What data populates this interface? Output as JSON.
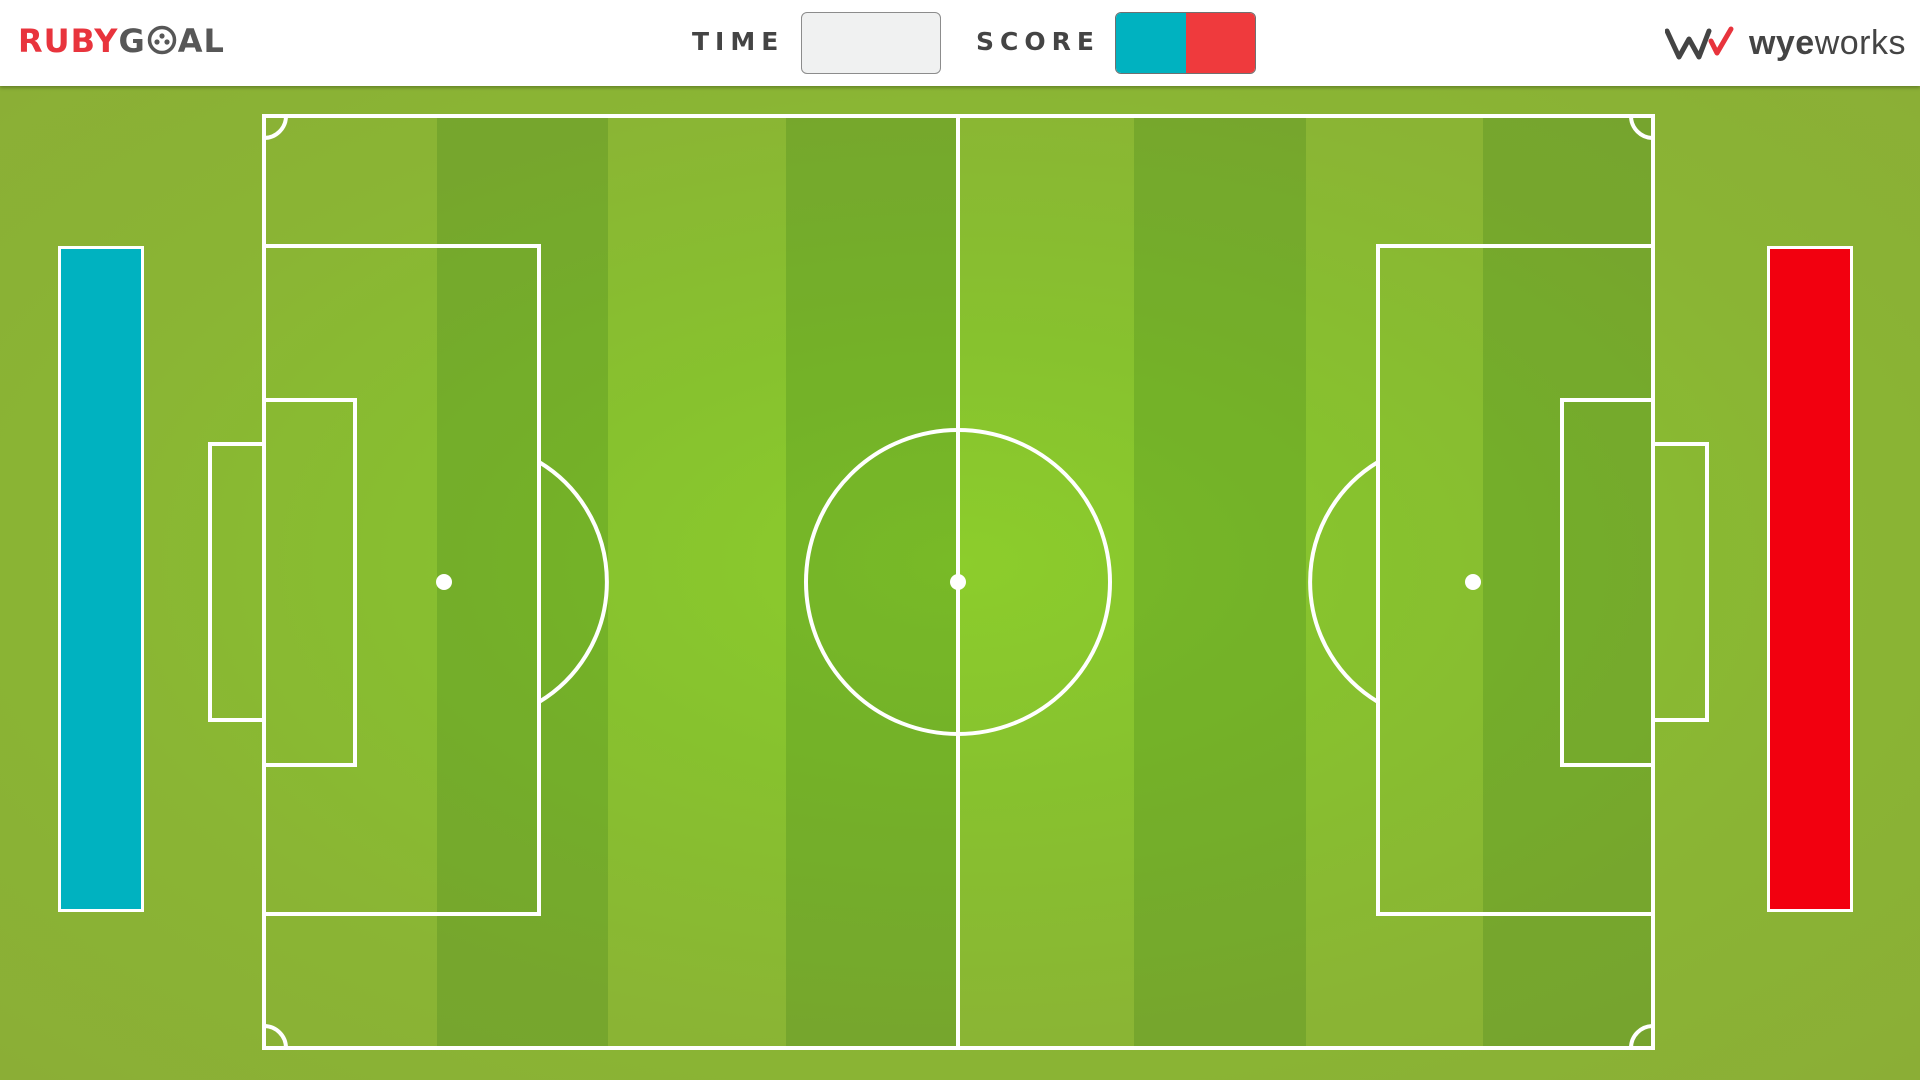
{
  "header": {
    "logo": {
      "part1": "RUBY",
      "part2_a": "G",
      "part2_b": "AL",
      "ball_icon": "soccer-ball-icon"
    },
    "time_label": "TIME",
    "time_value": "",
    "score_label": "SCORE",
    "score": {
      "left": "",
      "right": ""
    },
    "brand": {
      "mark_icon": "wyeworks-w-icon",
      "text_bold": "wye",
      "text_regular": "works"
    }
  },
  "teams": {
    "left": {
      "color": "#00b2c0"
    },
    "right": {
      "color": "#f2000f"
    }
  },
  "colors": {
    "score_left": "#00b2c0",
    "score_right": "#ef3a3d",
    "logo_red": "#e8343d",
    "logo_gray": "#575757",
    "pitch_green": "#8ccd2c",
    "lines": "#ffffff"
  }
}
